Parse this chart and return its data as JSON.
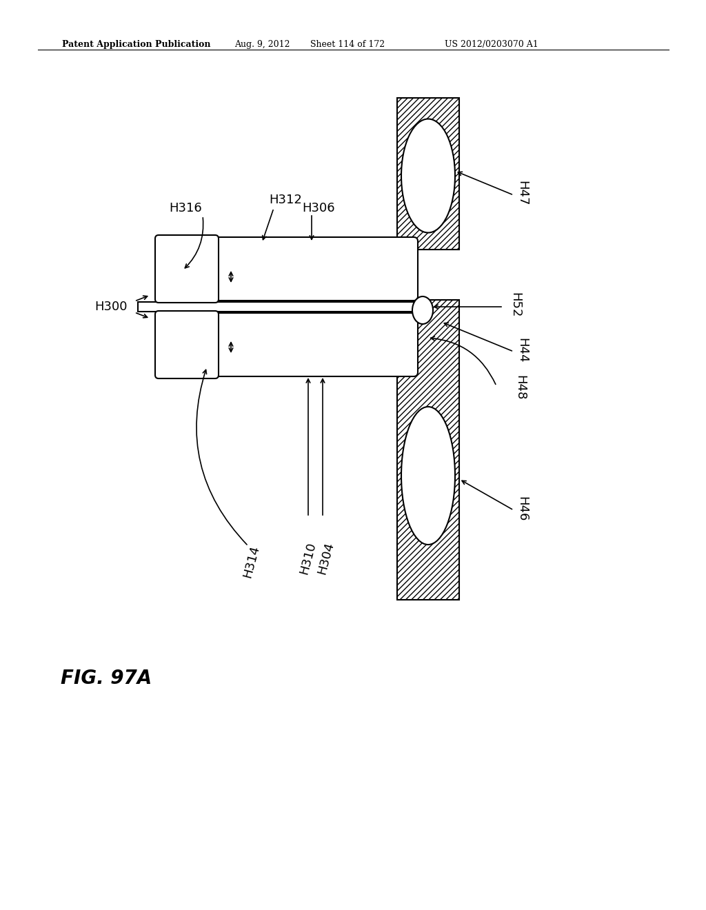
{
  "bg_color": "#ffffff",
  "header_text": "Patent Application Publication",
  "header_date": "Aug. 9, 2012",
  "header_sheet": "Sheet 114 of 172",
  "header_patent": "US 2012/0203070 A1",
  "fig_label": "FIG. 97A"
}
